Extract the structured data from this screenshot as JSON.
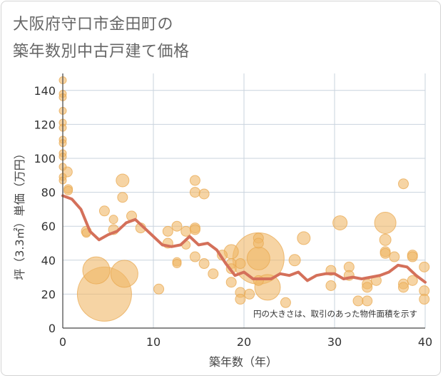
{
  "chart_data": {
    "type": "scatter",
    "title_lines": [
      "大阪府守口市金田町の",
      "築年数別中古戸建て価格"
    ],
    "xlabel": "築年数（年）",
    "ylabel": "坪（3.3㎡）単価（万円）",
    "xlim": [
      0,
      40
    ],
    "ylim": [
      0,
      150
    ],
    "x_ticks": [
      0,
      10,
      20,
      30,
      40
    ],
    "y_ticks": [
      0,
      20,
      40,
      60,
      80,
      100,
      120,
      140
    ],
    "annotation": "円の大きさは、取引のあった物件面積を示す",
    "colors": {
      "bubble": "#f0b868",
      "bubble_edge": "#e8a850",
      "trend": "#d4705a",
      "grid": "#c9d3de",
      "axis": "#444444"
    },
    "bubbles": [
      {
        "x": 0,
        "y": 146,
        "s": 5
      },
      {
        "x": 0,
        "y": 138,
        "s": 5
      },
      {
        "x": 0,
        "y": 136,
        "s": 5
      },
      {
        "x": 0,
        "y": 128,
        "s": 5
      },
      {
        "x": 0,
        "y": 121,
        "s": 5
      },
      {
        "x": 0,
        "y": 118,
        "s": 5
      },
      {
        "x": 0,
        "y": 111,
        "s": 5
      },
      {
        "x": 0,
        "y": 109,
        "s": 5
      },
      {
        "x": 0,
        "y": 103,
        "s": 5
      },
      {
        "x": 0,
        "y": 101,
        "s": 5
      },
      {
        "x": 0,
        "y": 95,
        "s": 5
      },
      {
        "x": 0,
        "y": 89,
        "s": 5
      },
      {
        "x": 0,
        "y": 87,
        "s": 5
      },
      {
        "x": 0.5,
        "y": 92,
        "s": 7
      },
      {
        "x": 0.6,
        "y": 82,
        "s": 6
      },
      {
        "x": 0.6,
        "y": 81,
        "s": 6
      },
      {
        "x": 2.6,
        "y": 57,
        "s": 7
      },
      {
        "x": 2.6,
        "y": 56,
        "s": 6
      },
      {
        "x": 3.7,
        "y": 34,
        "s": 19
      },
      {
        "x": 4.6,
        "y": 69,
        "s": 7
      },
      {
        "x": 4.6,
        "y": 20,
        "s": 38
      },
      {
        "x": 5.6,
        "y": 64,
        "s": 6
      },
      {
        "x": 5.6,
        "y": 58,
        "s": 7
      },
      {
        "x": 6.6,
        "y": 87,
        "s": 9
      },
      {
        "x": 6.6,
        "y": 77,
        "s": 7
      },
      {
        "x": 6.8,
        "y": 32,
        "s": 19
      },
      {
        "x": 7.6,
        "y": 66,
        "s": 7
      },
      {
        "x": 8.6,
        "y": 59,
        "s": 7
      },
      {
        "x": 10.6,
        "y": 23,
        "s": 7
      },
      {
        "x": 11.6,
        "y": 57,
        "s": 7
      },
      {
        "x": 11.6,
        "y": 50,
        "s": 7
      },
      {
        "x": 12.6,
        "y": 60,
        "s": 7
      },
      {
        "x": 12.6,
        "y": 39,
        "s": 6
      },
      {
        "x": 12.6,
        "y": 38,
        "s": 6
      },
      {
        "x": 13.6,
        "y": 57,
        "s": 7
      },
      {
        "x": 13.6,
        "y": 49,
        "s": 6
      },
      {
        "x": 14.6,
        "y": 87,
        "s": 7
      },
      {
        "x": 14.6,
        "y": 80,
        "s": 7
      },
      {
        "x": 14.6,
        "y": 59,
        "s": 7
      },
      {
        "x": 14.6,
        "y": 58,
        "s": 7
      },
      {
        "x": 14.6,
        "y": 42,
        "s": 7
      },
      {
        "x": 15.6,
        "y": 79,
        "s": 7
      },
      {
        "x": 15.6,
        "y": 38,
        "s": 7
      },
      {
        "x": 16.6,
        "y": 32,
        "s": 7
      },
      {
        "x": 17.6,
        "y": 43,
        "s": 7
      },
      {
        "x": 18.6,
        "y": 45,
        "s": 10
      },
      {
        "x": 18.6,
        "y": 38,
        "s": 7
      },
      {
        "x": 18.6,
        "y": 35,
        "s": 7
      },
      {
        "x": 18.6,
        "y": 27,
        "s": 7
      },
      {
        "x": 19.6,
        "y": 38,
        "s": 7
      },
      {
        "x": 19.6,
        "y": 21,
        "s": 7
      },
      {
        "x": 19.6,
        "y": 17,
        "s": 7
      },
      {
        "x": 20.6,
        "y": 20,
        "s": 7
      },
      {
        "x": 21.6,
        "y": 53,
        "s": 7
      },
      {
        "x": 21.6,
        "y": 50,
        "s": 7
      },
      {
        "x": 21.6,
        "y": 41,
        "s": 36
      },
      {
        "x": 21.6,
        "y": 41,
        "s": 16
      },
      {
        "x": 21.6,
        "y": 28,
        "s": 7
      },
      {
        "x": 22.6,
        "y": 24,
        "s": 18
      },
      {
        "x": 24.6,
        "y": 15,
        "s": 7
      },
      {
        "x": 25.6,
        "y": 40,
        "s": 8
      },
      {
        "x": 26.6,
        "y": 53,
        "s": 9
      },
      {
        "x": 29.6,
        "y": 34,
        "s": 7
      },
      {
        "x": 29.6,
        "y": 25,
        "s": 7
      },
      {
        "x": 30.6,
        "y": 62,
        "s": 10
      },
      {
        "x": 31.6,
        "y": 36,
        "s": 7
      },
      {
        "x": 31.6,
        "y": 31,
        "s": 7
      },
      {
        "x": 32.6,
        "y": 16,
        "s": 7
      },
      {
        "x": 33.6,
        "y": 26,
        "s": 7
      },
      {
        "x": 33.6,
        "y": 24,
        "s": 7
      },
      {
        "x": 33.6,
        "y": 16,
        "s": 7
      },
      {
        "x": 34.6,
        "y": 28,
        "s": 7
      },
      {
        "x": 35.6,
        "y": 62,
        "s": 15
      },
      {
        "x": 35.6,
        "y": 52,
        "s": 8
      },
      {
        "x": 35.6,
        "y": 45,
        "s": 7
      },
      {
        "x": 35.6,
        "y": 44,
        "s": 7
      },
      {
        "x": 36.6,
        "y": 42,
        "s": 7
      },
      {
        "x": 37.6,
        "y": 85,
        "s": 7
      },
      {
        "x": 37.6,
        "y": 26,
        "s": 7
      },
      {
        "x": 37.6,
        "y": 24,
        "s": 7
      },
      {
        "x": 38.6,
        "y": 43,
        "s": 7
      },
      {
        "x": 38.6,
        "y": 42,
        "s": 7
      },
      {
        "x": 38.6,
        "y": 28,
        "s": 7
      },
      {
        "x": 39.9,
        "y": 36,
        "s": 7
      },
      {
        "x": 39.9,
        "y": 22,
        "s": 7
      },
      {
        "x": 39.9,
        "y": 17,
        "s": 7
      }
    ],
    "trend": {
      "x": [
        0,
        1,
        2,
        3,
        4,
        5,
        6,
        7,
        8,
        9,
        10,
        11,
        12,
        13,
        14,
        15,
        16,
        17,
        18,
        19,
        20,
        21,
        22,
        23,
        24,
        25,
        26,
        27,
        28,
        29,
        30,
        31,
        32,
        33,
        34,
        35,
        36,
        37,
        38,
        39,
        40
      ],
      "y": [
        78,
        76,
        70,
        57,
        52,
        55,
        57,
        62,
        64,
        59,
        54,
        49,
        48,
        49,
        54,
        49,
        50,
        46,
        38,
        31,
        33,
        29,
        29,
        29,
        32,
        31,
        33,
        28,
        31,
        32,
        32,
        29,
        30,
        29,
        30,
        31,
        33,
        37,
        36,
        31,
        27
      ]
    }
  }
}
